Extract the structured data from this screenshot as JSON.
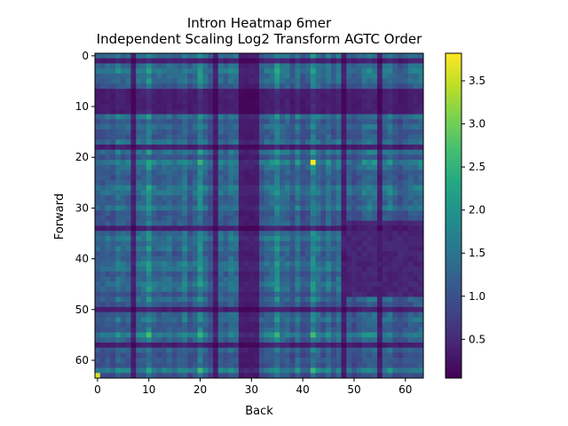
{
  "chart_data": {
    "type": "heatmap",
    "title": [
      "Intron Heatmap 6mer",
      "Independent Scaling Log2 Transform AGTC Order"
    ],
    "xlabel": "Back",
    "ylabel": "Forward",
    "rows": 64,
    "cols": 64,
    "xticks": [
      0,
      10,
      20,
      30,
      40,
      50,
      60
    ],
    "yticks": [
      0,
      10,
      20,
      30,
      40,
      50,
      60
    ],
    "colorbar": {
      "colormap": "viridis",
      "range": [
        0.05,
        3.82
      ],
      "ticks": [
        0.5,
        1.0,
        1.5,
        2.0,
        2.5,
        3.0,
        3.5
      ]
    },
    "structure": {
      "base_value": 1.2,
      "dark_rows": [
        1,
        7,
        8,
        9,
        10,
        11,
        18,
        34,
        50,
        57
      ],
      "dark_cols": [
        7,
        23,
        28,
        29,
        30,
        31,
        48,
        55
      ],
      "bright_cols": [
        10,
        20,
        35,
        42
      ],
      "bright_rows": [
        21,
        55,
        62
      ],
      "dark_block": {
        "rows": [
          33,
          47
        ],
        "cols": [
          48,
          63
        ],
        "value": 0.5
      },
      "hotspots": [
        {
          "row": 21,
          "col": 42,
          "value": 3.8
        },
        {
          "row": 63,
          "col": 0,
          "value": 3.6
        }
      ]
    }
  }
}
